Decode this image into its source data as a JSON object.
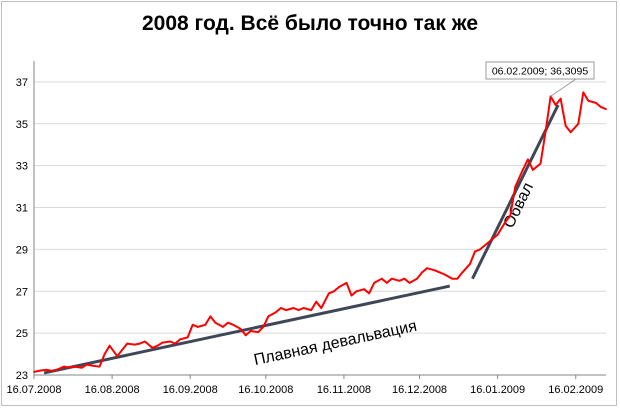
{
  "chart_data": {
    "type": "line",
    "title": "2008 год. Всё было точно так же",
    "xlabel": "",
    "ylabel": "",
    "ylim": [
      23,
      38
    ],
    "yticks": [
      23,
      25,
      27,
      29,
      31,
      33,
      35,
      37
    ],
    "xlim": [
      "2008-07-16",
      "2009-02-28"
    ],
    "x_tick_dates": [
      "2008-07-16",
      "2008-08-16",
      "2008-09-16",
      "2008-10-16",
      "2008-11-16",
      "2008-12-16",
      "2009-01-16",
      "2009-02-16"
    ],
    "x_tick_labels": [
      "16.07.2008",
      "16.08.2008",
      "16.09.2008",
      "16.10.2008",
      "16.11.2008",
      "16.12.2008",
      "16.01.2009",
      "16.02.2009"
    ],
    "grid": "horizontal",
    "series": [
      {
        "color": "#ff0000",
        "points": [
          [
            "2008-07-16",
            23.15
          ],
          [
            "2008-07-18",
            23.2
          ],
          [
            "2008-07-21",
            23.25
          ],
          [
            "2008-07-23",
            23.2
          ],
          [
            "2008-07-25",
            23.25
          ],
          [
            "2008-07-28",
            23.4
          ],
          [
            "2008-07-30",
            23.35
          ],
          [
            "2008-08-01",
            23.4
          ],
          [
            "2008-08-04",
            23.35
          ],
          [
            "2008-08-06",
            23.5
          ],
          [
            "2008-08-08",
            23.45
          ],
          [
            "2008-08-11",
            23.4
          ],
          [
            "2008-08-13",
            24.0
          ],
          [
            "2008-08-15",
            24.4
          ],
          [
            "2008-08-18",
            23.9
          ],
          [
            "2008-08-20",
            24.2
          ],
          [
            "2008-08-22",
            24.5
          ],
          [
            "2008-08-25",
            24.45
          ],
          [
            "2008-08-27",
            24.5
          ],
          [
            "2008-08-29",
            24.6
          ],
          [
            "2008-09-01",
            24.3
          ],
          [
            "2008-09-03",
            24.4
          ],
          [
            "2008-09-05",
            24.55
          ],
          [
            "2008-09-08",
            24.6
          ],
          [
            "2008-09-10",
            24.5
          ],
          [
            "2008-09-12",
            24.7
          ],
          [
            "2008-09-15",
            24.8
          ],
          [
            "2008-09-17",
            25.4
          ],
          [
            "2008-09-19",
            25.3
          ],
          [
            "2008-09-22",
            25.4
          ],
          [
            "2008-09-24",
            25.8
          ],
          [
            "2008-09-26",
            25.5
          ],
          [
            "2008-09-29",
            25.3
          ],
          [
            "2008-10-01",
            25.5
          ],
          [
            "2008-10-03",
            25.4
          ],
          [
            "2008-10-06",
            25.2
          ],
          [
            "2008-10-08",
            24.9
          ],
          [
            "2008-10-10",
            25.1
          ],
          [
            "2008-10-13",
            25.05
          ],
          [
            "2008-10-15",
            25.3
          ],
          [
            "2008-10-17",
            25.8
          ],
          [
            "2008-10-20",
            26.0
          ],
          [
            "2008-10-22",
            26.2
          ],
          [
            "2008-10-24",
            26.1
          ],
          [
            "2008-10-27",
            26.2
          ],
          [
            "2008-10-29",
            26.1
          ],
          [
            "2008-10-31",
            26.2
          ],
          [
            "2008-11-03",
            26.1
          ],
          [
            "2008-11-05",
            26.5
          ],
          [
            "2008-11-07",
            26.2
          ],
          [
            "2008-11-10",
            26.9
          ],
          [
            "2008-11-12",
            27.0
          ],
          [
            "2008-11-14",
            27.2
          ],
          [
            "2008-11-17",
            27.4
          ],
          [
            "2008-11-19",
            26.8
          ],
          [
            "2008-11-21",
            27.0
          ],
          [
            "2008-11-24",
            27.1
          ],
          [
            "2008-11-26",
            26.9
          ],
          [
            "2008-11-28",
            27.4
          ],
          [
            "2008-12-01",
            27.6
          ],
          [
            "2008-12-03",
            27.4
          ],
          [
            "2008-12-05",
            27.6
          ],
          [
            "2008-12-08",
            27.5
          ],
          [
            "2008-12-10",
            27.6
          ],
          [
            "2008-12-12",
            27.4
          ],
          [
            "2008-12-15",
            27.6
          ],
          [
            "2008-12-17",
            27.9
          ],
          [
            "2008-12-19",
            28.1
          ],
          [
            "2008-12-22",
            28.0
          ],
          [
            "2008-12-24",
            27.9
          ],
          [
            "2008-12-26",
            27.8
          ],
          [
            "2008-12-29",
            27.6
          ],
          [
            "2008-12-31",
            27.6
          ],
          [
            "2009-01-02",
            27.9
          ],
          [
            "2009-01-05",
            28.3
          ],
          [
            "2009-01-07",
            28.9
          ],
          [
            "2009-01-09",
            29.0
          ],
          [
            "2009-01-12",
            29.3
          ],
          [
            "2009-01-14",
            29.5
          ],
          [
            "2009-01-16",
            29.7
          ],
          [
            "2009-01-19",
            30.3
          ],
          [
            "2009-01-21",
            30.6
          ],
          [
            "2009-01-23",
            32.0
          ],
          [
            "2009-01-26",
            32.8
          ],
          [
            "2009-01-28",
            33.3
          ],
          [
            "2009-01-30",
            32.8
          ],
          [
            "2009-02-02",
            33.1
          ],
          [
            "2009-02-04",
            34.6
          ],
          [
            "2009-02-06",
            36.3095
          ],
          [
            "2009-02-08",
            35.9
          ],
          [
            "2009-02-10",
            36.2
          ],
          [
            "2009-02-12",
            34.9
          ],
          [
            "2009-02-14",
            34.6
          ],
          [
            "2009-02-17",
            35.0
          ],
          [
            "2009-02-19",
            36.5
          ],
          [
            "2009-02-21",
            36.1
          ],
          [
            "2009-02-24",
            36.0
          ],
          [
            "2009-02-26",
            35.8
          ],
          [
            "2009-02-28",
            35.7
          ]
        ]
      }
    ],
    "callout": "06.02.2009; 36,3095",
    "annotations": [
      {
        "text": "Плавная девальвация"
      },
      {
        "text": "Обвал"
      }
    ]
  }
}
